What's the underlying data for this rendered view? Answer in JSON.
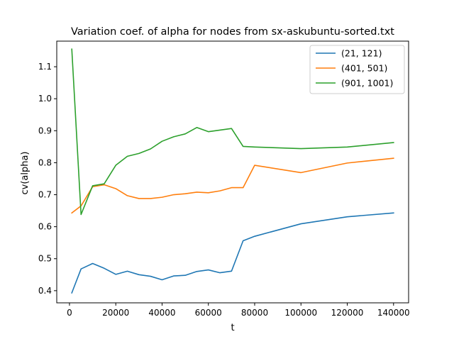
{
  "chart_data": {
    "type": "line",
    "title": "Variation coef. of alpha for nodes from sx-askubuntu-sorted.txt",
    "xlabel": "t",
    "ylabel": "cv(alpha)",
    "xlim": [
      -5500,
      146500
    ],
    "ylim": [
      0.362,
      1.18
    ],
    "xticks": [
      0,
      20000,
      40000,
      60000,
      80000,
      100000,
      120000,
      140000
    ],
    "yticks": [
      0.4,
      0.5,
      0.6,
      0.7,
      0.8,
      0.9,
      1.0,
      1.1
    ],
    "ytick_labels": [
      "0.4",
      "0.5",
      "0.6",
      "0.7",
      "0.8",
      "0.9",
      "1.0",
      "1.1"
    ],
    "grid": false,
    "legend_position": "top-right",
    "series": [
      {
        "name": "(21, 121)",
        "color": "#1f77b4",
        "x": [
          1000,
          5000,
          10000,
          15000,
          20000,
          25000,
          30000,
          35000,
          40000,
          45000,
          50000,
          55000,
          60000,
          65000,
          70000,
          75000,
          80000,
          100000,
          120000,
          140000
        ],
        "y": [
          0.393,
          0.468,
          0.485,
          0.47,
          0.451,
          0.461,
          0.45,
          0.445,
          0.434,
          0.446,
          0.448,
          0.46,
          0.465,
          0.456,
          0.461,
          0.556,
          0.57,
          0.609,
          0.631,
          0.643
        ]
      },
      {
        "name": "(401, 501)",
        "color": "#ff7f0e",
        "x": [
          1000,
          5000,
          10000,
          15000,
          20000,
          25000,
          30000,
          35000,
          40000,
          45000,
          50000,
          55000,
          60000,
          65000,
          70000,
          75000,
          80000,
          100000,
          120000,
          140000
        ],
        "y": [
          0.643,
          0.665,
          0.725,
          0.731,
          0.719,
          0.697,
          0.688,
          0.688,
          0.692,
          0.7,
          0.703,
          0.708,
          0.706,
          0.712,
          0.722,
          0.722,
          0.792,
          0.769,
          0.799,
          0.814
        ]
      },
      {
        "name": "(901, 1001)",
        "color": "#2ca02c",
        "x": [
          1000,
          5000,
          10000,
          15000,
          20000,
          25000,
          30000,
          35000,
          40000,
          45000,
          50000,
          55000,
          60000,
          65000,
          70000,
          75000,
          80000,
          100000,
          120000,
          140000
        ],
        "y": [
          1.155,
          0.638,
          0.728,
          0.734,
          0.792,
          0.82,
          0.829,
          0.843,
          0.867,
          0.881,
          0.89,
          0.91,
          0.897,
          0.902,
          0.907,
          0.851,
          0.849,
          0.844,
          0.849,
          0.863
        ]
      }
    ]
  }
}
